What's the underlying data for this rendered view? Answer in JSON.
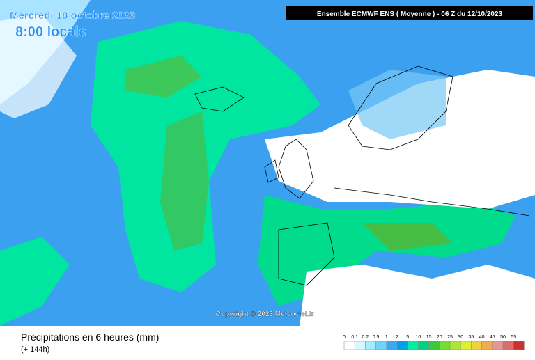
{
  "header": {
    "date": "Mercredi 18 octobre 2023",
    "time": "8:00 locale",
    "model": "Ensemble ECMWF ENS  ( Moyenne )  -  06 Z du 12/10/2023"
  },
  "copyright": "Copyright © 2023 Meteociel.fr",
  "footer": {
    "title": "Précipitations en 6 heures (mm)",
    "lead": "(+ 144h)"
  },
  "legend": {
    "labels": [
      "0",
      "0.1",
      "0.2",
      "0.5",
      "1",
      "2",
      "5",
      "10",
      "15",
      "20",
      "25",
      "30",
      "35",
      "40",
      "45",
      "50",
      "55"
    ],
    "colors": [
      "#ffffff",
      "#d2faff",
      "#a5ebff",
      "#6ed2ff",
      "#37aaf5",
      "#00a0e6",
      "#00f0a0",
      "#00d282",
      "#3cc83c",
      "#78dc32",
      "#aae632",
      "#dcf032",
      "#f0d23c",
      "#f0aa50",
      "#e69696",
      "#dc6e6e",
      "#c83232"
    ]
  }
}
